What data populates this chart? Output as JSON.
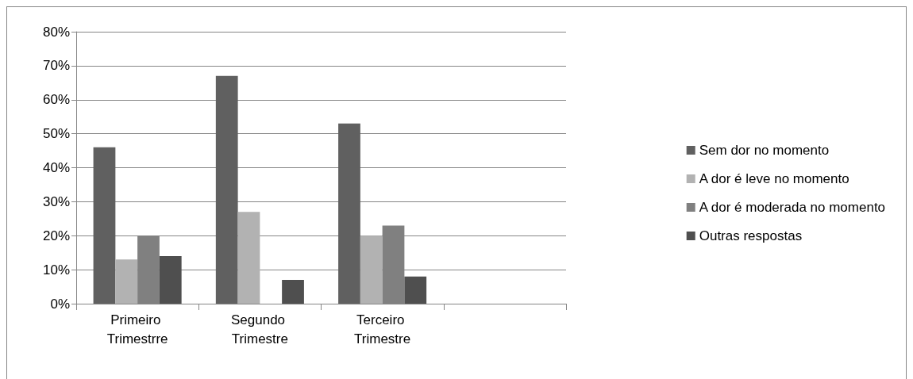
{
  "chart_data": {
    "type": "bar",
    "categories": [
      "Primeiro Trimestrre",
      "Segundo Trimestre",
      "Terceiro Trimestre",
      null
    ],
    "series": [
      {
        "name": "Sem dor no momento",
        "color": "#606060",
        "values": [
          46,
          67,
          53,
          null
        ]
      },
      {
        "name": "A dor é leve no momento",
        "color": "#b2b2b2",
        "values": [
          13,
          27,
          20,
          null
        ]
      },
      {
        "name": "A dor é moderada no momento",
        "color": "#808080",
        "values": [
          20,
          0,
          23,
          null
        ]
      },
      {
        "name": "Outras respostas",
        "color": "#4f4f4f",
        "values": [
          14,
          7,
          8,
          null
        ]
      }
    ],
    "ylim": [
      0,
      80
    ],
    "yticks": [
      {
        "value": 0,
        "label": "0%"
      },
      {
        "value": 10,
        "label": "10%"
      },
      {
        "value": 20,
        "label": "20%"
      },
      {
        "value": 30,
        "label": "30%"
      },
      {
        "value": 40,
        "label": "40%"
      },
      {
        "value": 50,
        "label": "50%"
      },
      {
        "value": 60,
        "label": "60%"
      },
      {
        "value": 70,
        "label": "70%"
      },
      {
        "value": 80,
        "label": "80%"
      }
    ],
    "grid": "y",
    "legend": "right"
  }
}
